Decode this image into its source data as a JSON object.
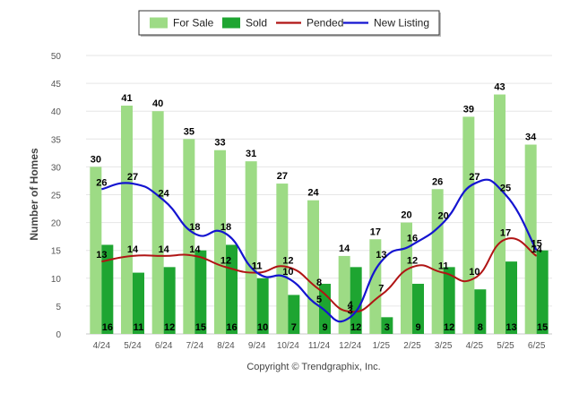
{
  "chart_data": {
    "type": "bar",
    "categories": [
      "4/24",
      "5/24",
      "6/24",
      "7/24",
      "8/24",
      "9/24",
      "10/24",
      "11/24",
      "12/24",
      "1/25",
      "2/25",
      "3/25",
      "4/25",
      "5/25",
      "6/25"
    ],
    "series": [
      {
        "name": "For Sale",
        "kind": "bar",
        "color": "#9ddb85",
        "values": [
          30,
          41,
          40,
          35,
          33,
          31,
          27,
          24,
          14,
          17,
          20,
          26,
          39,
          43,
          34
        ]
      },
      {
        "name": "Sold",
        "kind": "bar",
        "color": "#1ea531",
        "values": [
          16,
          11,
          12,
          15,
          16,
          10,
          7,
          9,
          12,
          3,
          9,
          12,
          8,
          13,
          15
        ]
      },
      {
        "name": "Pended",
        "kind": "line",
        "color": "#b01414",
        "values": [
          13,
          14,
          14,
          14,
          12,
          11,
          12,
          8,
          4,
          7,
          12,
          11,
          10,
          17,
          14
        ]
      },
      {
        "name": "New Listing",
        "kind": "line",
        "color": "#1414d0",
        "values": [
          26,
          27,
          24,
          18,
          18,
          11,
          10,
          5,
          3,
          13,
          16,
          20,
          27,
          25,
          15
        ]
      }
    ],
    "ylabel": "Number of Homes",
    "xlabel": "",
    "ylim": [
      0,
      50
    ],
    "yticks": [
      0,
      5,
      10,
      15,
      20,
      25,
      30,
      35,
      40,
      45,
      50
    ],
    "grid": true,
    "legend_position": "top-center",
    "footer": "Copyright © Trendgraphix, Inc."
  }
}
